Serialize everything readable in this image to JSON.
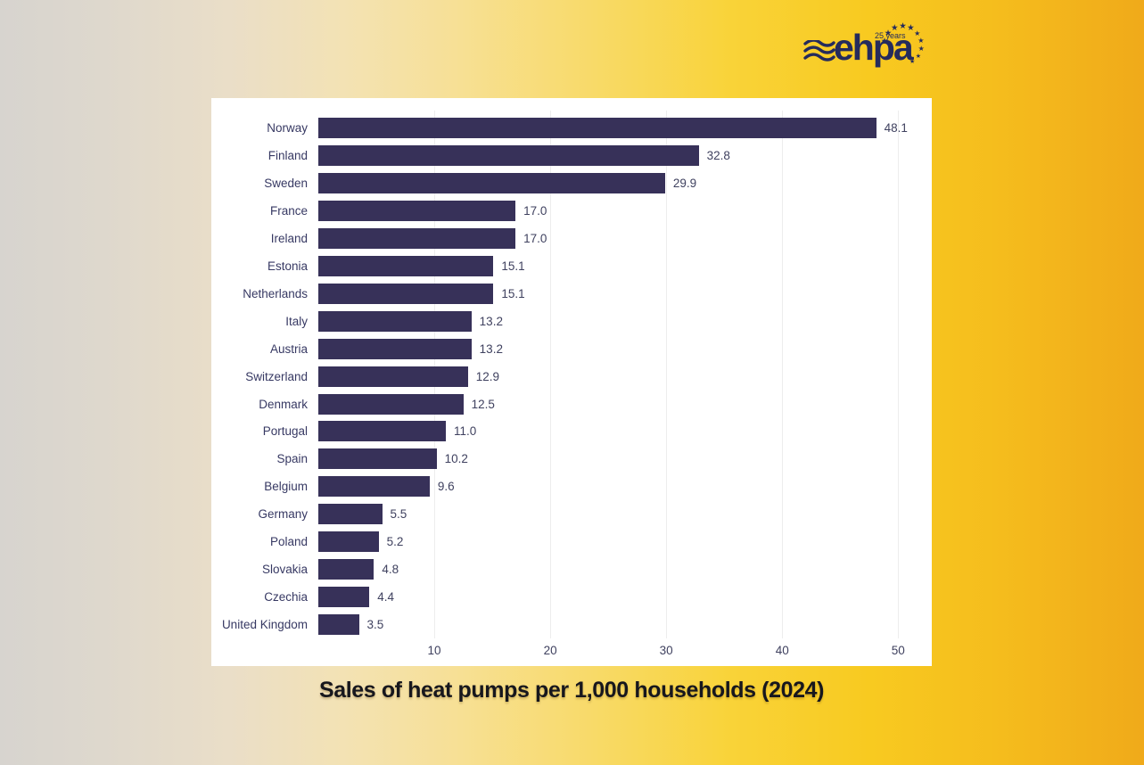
{
  "title": "Sales of heat pumps per 1,000 households (2024)",
  "logo": {
    "name": "ehpa",
    "years_badge": "25 years",
    "star_char": "★",
    "color": "#252b5c"
  },
  "chart_data": {
    "type": "bar",
    "orientation": "horizontal",
    "title": "Sales of heat pumps per 1,000 households (2024)",
    "categories": [
      "Norway",
      "Finland",
      "Sweden",
      "France",
      "Ireland",
      "Estonia",
      "Netherlands",
      "Italy",
      "Austria",
      "Switzerland",
      "Denmark",
      "Portugal",
      "Spain",
      "Belgium",
      "Germany",
      "Poland",
      "Slovakia",
      "Czechia",
      "United Kingdom"
    ],
    "values": [
      48.1,
      32.8,
      29.9,
      17.0,
      17.0,
      15.1,
      15.1,
      13.2,
      13.2,
      12.9,
      12.5,
      11.0,
      10.2,
      9.6,
      5.5,
      5.2,
      4.8,
      4.4,
      3.5
    ],
    "value_labels": [
      "48.1",
      "32.8",
      "29.9",
      "17.0",
      "17.0",
      "15.1",
      "15.1",
      "13.2",
      "13.2",
      "12.9",
      "12.5",
      "11.0",
      "10.2",
      "9.6",
      "5.5",
      "5.2",
      "4.8",
      "4.4",
      "3.5"
    ],
    "xlabel": "",
    "ylabel": "",
    "xlim": [
      0,
      52.9
    ],
    "xticks": [
      10,
      20,
      30,
      40,
      50
    ],
    "grid": "vertical",
    "legend": "none",
    "bar_color": "#373159",
    "gridline_color": "#ededed",
    "axis_text_color": "#3f415f"
  },
  "colors": {
    "background_left": "#d7d4cf",
    "background_right": "#f0aa1a",
    "panel": "#ffffff",
    "title_text": "#17171d",
    "logo_navy": "#252b5c"
  }
}
